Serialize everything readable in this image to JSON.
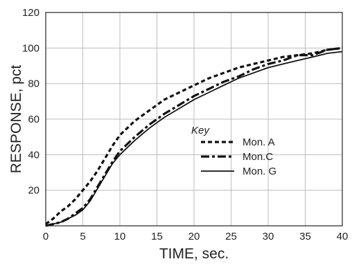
{
  "chart_data": {
    "type": "line",
    "xlabel": "TIME, sec.",
    "ylabel": "RESPONSE, pct",
    "xlim": [
      0,
      40
    ],
    "ylim": [
      0,
      120
    ],
    "x_ticks": [
      0,
      5,
      10,
      15,
      20,
      25,
      30,
      35,
      40
    ],
    "x_tick_labels": [
      "0",
      "5",
      "10",
      "15",
      "20",
      "25",
      "30",
      "35",
      "40"
    ],
    "y_ticks": [
      20,
      40,
      60,
      80,
      100,
      120
    ],
    "y_tick_labels": [
      "20",
      "40",
      "60",
      "80",
      "100",
      "120"
    ],
    "grid": true,
    "legend": {
      "title": "Key",
      "placement": "center-right"
    },
    "series": [
      {
        "name": "Mon. A",
        "style": "dotted",
        "x": [
          0,
          1,
          2,
          3,
          4,
          5,
          6,
          7,
          8,
          9,
          10,
          12,
          14,
          16,
          18,
          20,
          22,
          24,
          26,
          28,
          30,
          32,
          34,
          36,
          38,
          40
        ],
        "y": [
          1,
          4,
          8,
          11,
          15,
          20,
          25,
          31,
          38,
          45,
          51,
          59,
          65,
          71,
          75,
          79,
          83,
          86,
          89,
          91,
          93,
          95,
          96,
          97,
          99,
          100
        ]
      },
      {
        "name": "Mon.C",
        "style": "dash-dot",
        "x": [
          0,
          1,
          2,
          3,
          4,
          5,
          6,
          7,
          8,
          9,
          10,
          12,
          14,
          16,
          18,
          20,
          22,
          24,
          26,
          28,
          30,
          32,
          34,
          36,
          38,
          40
        ],
        "y": [
          0,
          1,
          2,
          4,
          7,
          10,
          15,
          22,
          29,
          36,
          42,
          50,
          57,
          63,
          68,
          73,
          77,
          81,
          84,
          88,
          91,
          93,
          96,
          96,
          99,
          100
        ]
      },
      {
        "name": "Mon. G",
        "style": "solid",
        "x": [
          0,
          1,
          2,
          3,
          4,
          5,
          6,
          7,
          8,
          9,
          10,
          12,
          14,
          16,
          18,
          20,
          22,
          24,
          26,
          28,
          30,
          32,
          34,
          36,
          38,
          40
        ],
        "y": [
          0,
          1,
          2,
          4,
          6,
          9,
          14,
          21,
          28,
          35,
          40,
          48,
          55,
          61,
          66,
          71,
          75,
          79,
          83,
          86,
          89,
          91,
          93,
          95,
          97,
          98
        ]
      }
    ]
  }
}
